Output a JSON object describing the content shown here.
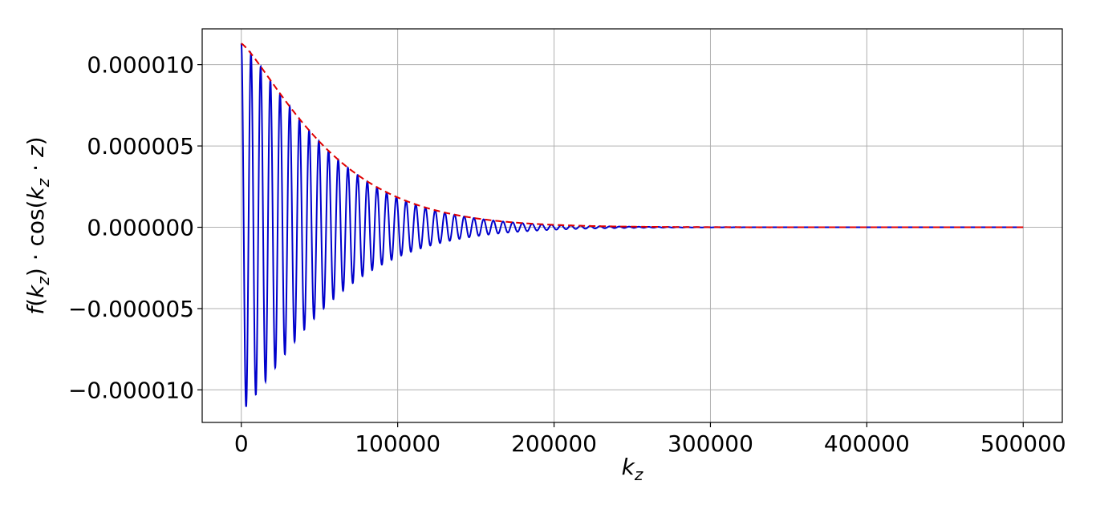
{
  "chart_data": {
    "type": "line",
    "title": "",
    "xlabel": "k_z",
    "ylabel": "f(k_z) · cos(k_z · z)",
    "xlim": [
      -25000,
      525000
    ],
    "ylim": [
      -1.2e-05,
      1.22e-05
    ],
    "x_ticks": [
      0,
      100000,
      200000,
      300000,
      400000,
      500000
    ],
    "x_tick_labels": [
      "0",
      "100000",
      "200000",
      "300000",
      "400000",
      "500000"
    ],
    "y_ticks": [
      1e-05,
      5e-06,
      0.0,
      -5e-06,
      -1e-05
    ],
    "y_tick_labels": [
      "0.000010",
      "0.000005",
      "0.000000",
      "−0.000005",
      "−0.000010"
    ],
    "grid": true,
    "series": [
      {
        "role": "oscillation",
        "color": "#0000cc",
        "style": "solid",
        "x_range": [
          0,
          500000
        ],
        "amplitude": 1.13e-05,
        "envelope_scale": 62000,
        "period": 6200
      },
      {
        "role": "envelope",
        "color": "#e00000",
        "style": "dashed",
        "x_range": [
          0,
          500000
        ],
        "amplitude": 1.13e-05,
        "envelope_scale": 62000
      }
    ]
  }
}
